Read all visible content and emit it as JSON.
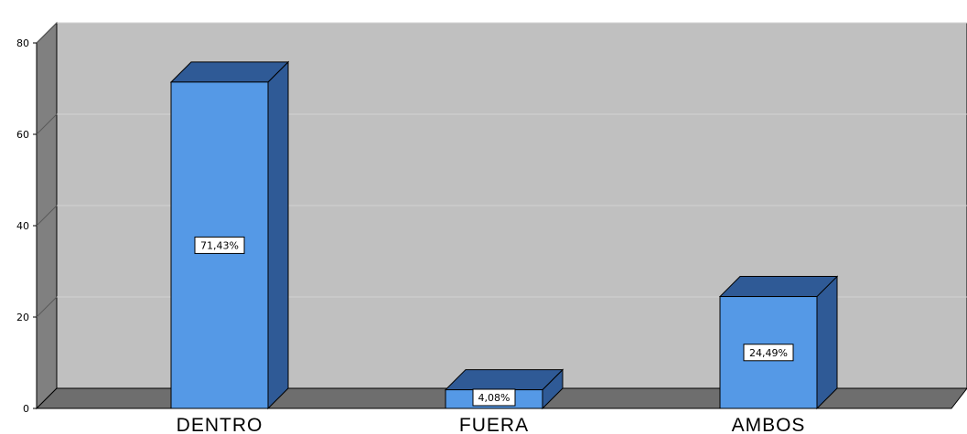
{
  "chart_data": {
    "type": "bar",
    "style": "3d",
    "categories": [
      "DENTRO",
      "FUERA",
      "AMBOS"
    ],
    "values": [
      71.43,
      4.08,
      24.49
    ],
    "data_labels": [
      "71,43%",
      "4,08%",
      "24,49%"
    ],
    "ylim": [
      0,
      80
    ],
    "yticks": [
      "0",
      "20",
      "40",
      "60",
      "80"
    ],
    "grid": true,
    "title": "",
    "xlabel": "",
    "ylabel": "",
    "colors": {
      "bar_front": "#5599e6",
      "bar_top": "#2f5a96",
      "bar_side": "#2f5a96",
      "wall": "#c0c0c0",
      "left_wall": "#808080",
      "floor": "#6e6e6e",
      "grid": "#d2d2d2"
    }
  }
}
